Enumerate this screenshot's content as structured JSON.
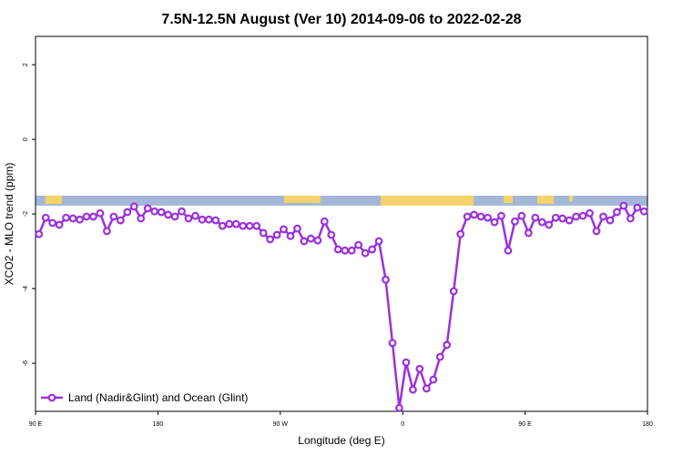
{
  "chart_data": {
    "type": "line",
    "title": "7.5N-12.5N August (Ver 10)   2014-09-06 to 2022-02-28",
    "xlabel": "Longitude (deg E)",
    "ylabel": "XCO2 - MLO trend (ppm)",
    "xlim": [
      90,
      540
    ],
    "ylim": [
      2.76,
      -7.29
    ],
    "xticks": [
      {
        "value": 90,
        "label": "90 E"
      },
      180,
      {
        "value": 270,
        "label": "90 W"
      },
      {
        "value": 360,
        "label": "0"
      },
      {
        "value": 450,
        "label": "90 E"
      },
      {
        "value": 540,
        "label": "180"
      }
    ],
    "yticks": [
      2,
      0,
      -2,
      -4,
      -6
    ],
    "legend": "lower left",
    "x": [
      92.5,
      97.5,
      102.5,
      107.5,
      112.5,
      117.5,
      122.5,
      127.5,
      132.5,
      137.5,
      142.5,
      147.5,
      152.5,
      157.5,
      162.5,
      167.5,
      172.5,
      177.5,
      182.5,
      187.5,
      192.5,
      197.5,
      202.5,
      207.5,
      212.5,
      217.5,
      222.5,
      227.5,
      232.5,
      237.5,
      242.5,
      247.5,
      252.5,
      257.5,
      262.5,
      267.5,
      272.5,
      277.5,
      282.5,
      287.5,
      292.5,
      297.5,
      302.5,
      307.5,
      312.5,
      317.5,
      322.5,
      327.5,
      332.5,
      337.5,
      342.5,
      347.5,
      352.5,
      357.5,
      362.5,
      367.5,
      372.5,
      377.5,
      382.5,
      387.5,
      392.5,
      397.5,
      402.5,
      407.5,
      412.5,
      417.5,
      422.5,
      427.5,
      432.5,
      437.5,
      442.5,
      447.5,
      452.5,
      457.5,
      462.5,
      467.5,
      472.5,
      477.5,
      482.5,
      487.5,
      492.5,
      497.5,
      502.5,
      507.5,
      512.5,
      517.5,
      522.5,
      527.5,
      532.5,
      537.5
    ],
    "series": [
      {
        "name": "Land (Nadir&Glint) and Ocean (Glint)",
        "color": "#9b30e0",
        "values": [
          -2.54,
          -2.1,
          -2.24,
          -2.29,
          -2.1,
          -2.12,
          -2.15,
          -2.07,
          -2.07,
          -1.98,
          -2.46,
          -2.07,
          -2.17,
          -1.95,
          -1.8,
          -2.12,
          -1.85,
          -1.93,
          -1.95,
          -2.02,
          -2.07,
          -1.93,
          -2.12,
          -2.05,
          -2.15,
          -2.15,
          -2.17,
          -2.32,
          -2.27,
          -2.27,
          -2.32,
          -2.32,
          -2.32,
          -2.51,
          -2.68,
          -2.56,
          -2.41,
          -2.59,
          -2.39,
          -2.73,
          -2.66,
          -2.71,
          -2.2,
          -2.56,
          -2.95,
          -2.98,
          -2.98,
          -2.83,
          -3.05,
          -2.95,
          -2.73,
          -3.76,
          -5.46,
          -7.2,
          -5.98,
          -6.71,
          -6.15,
          -6.68,
          -6.44,
          -5.83,
          -5.51,
          -4.07,
          -2.54,
          -2.07,
          -2.02,
          -2.07,
          -2.1,
          -2.22,
          -2.05,
          -2.98,
          -2.2,
          -2.05,
          -2.51,
          -2.1,
          -2.22,
          -2.29,
          -2.1,
          -2.12,
          -2.17,
          -2.07,
          -2.05,
          -1.98,
          -2.46,
          -2.07,
          -2.17,
          -1.95,
          -1.78,
          -2.12,
          -1.83,
          -1.93
        ]
      }
    ]
  }
}
